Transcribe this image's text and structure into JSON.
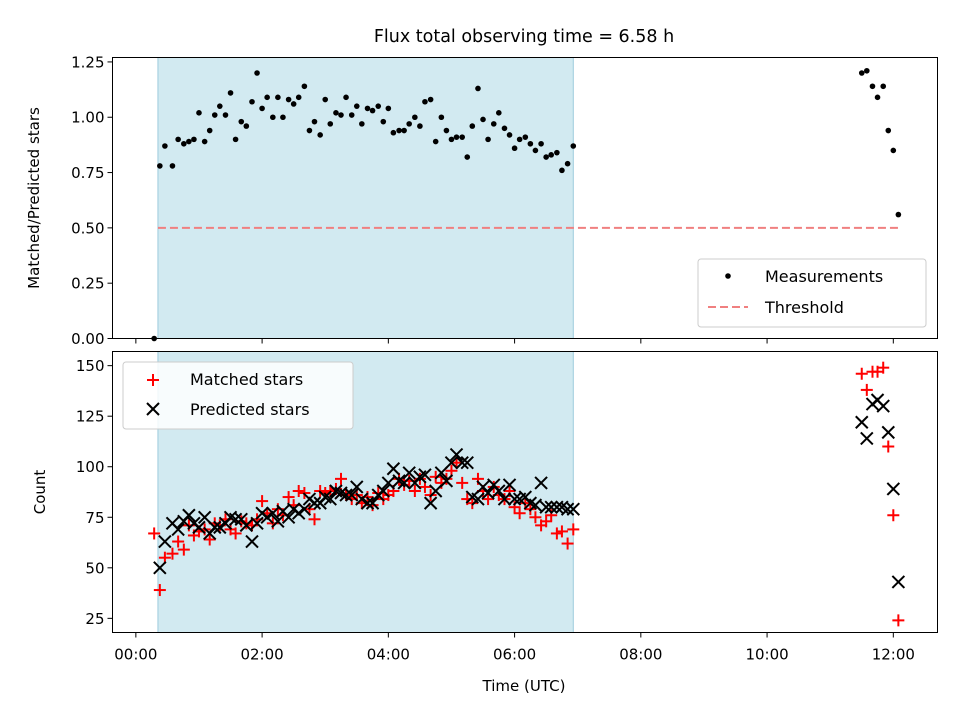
{
  "figure": {
    "title": "Flux total observing time = 6.58 h"
  },
  "chart_data": [
    {
      "type": "scatter",
      "panel": "top",
      "xlabel": "",
      "ylabel": "Matched/Predicted stars",
      "xlim": [
        -0.37,
        12.7
      ],
      "ylim": [
        0,
        1.27
      ],
      "yticks": [
        0.0,
        0.25,
        0.5,
        0.75,
        1.0,
        1.25
      ],
      "ytick_labels": [
        "0.00",
        "0.25",
        "0.50",
        "0.75",
        "1.00",
        "1.25"
      ],
      "grid": false,
      "legend_location": "lower right",
      "shaded_span": {
        "x": [
          0.35,
          6.93
        ],
        "color": "#add8e6"
      },
      "threshold": {
        "name": "Threshold",
        "y": 0.5,
        "x": [
          0.35,
          12.1
        ],
        "color": "#f08080",
        "style": "dashed"
      },
      "series": [
        {
          "name": "Measurements",
          "marker": "dot",
          "color": "#000000",
          "x": [
            0.29,
            0.38,
            0.46,
            0.58,
            0.67,
            0.76,
            0.84,
            0.92,
            1.0,
            1.09,
            1.17,
            1.25,
            1.33,
            1.42,
            1.5,
            1.58,
            1.67,
            1.75,
            1.84,
            1.92,
            2.0,
            2.08,
            2.17,
            2.25,
            2.33,
            2.42,
            2.5,
            2.58,
            2.67,
            2.75,
            2.83,
            2.92,
            3.0,
            3.08,
            3.17,
            3.25,
            3.33,
            3.42,
            3.5,
            3.58,
            3.67,
            3.75,
            3.84,
            3.92,
            4.0,
            4.08,
            4.17,
            4.25,
            4.33,
            4.42,
            4.5,
            4.58,
            4.67,
            4.75,
            4.84,
            4.92,
            5.0,
            5.08,
            5.17,
            5.25,
            5.33,
            5.42,
            5.5,
            5.58,
            5.67,
            5.75,
            5.84,
            5.92,
            6.0,
            6.08,
            6.17,
            6.25,
            6.33,
            6.42,
            6.5,
            6.58,
            6.67,
            6.75,
            6.84,
            6.93,
            11.5,
            11.58,
            11.67,
            11.75,
            11.84,
            11.92,
            12.0,
            12.08
          ],
          "y": [
            0.0,
            0.78,
            0.87,
            0.78,
            0.9,
            0.88,
            0.89,
            0.9,
            1.02,
            0.89,
            0.94,
            1.01,
            1.05,
            1.01,
            1.11,
            0.9,
            0.98,
            0.96,
            1.07,
            1.2,
            1.04,
            1.09,
            1.0,
            1.09,
            1.0,
            1.08,
            1.06,
            1.09,
            1.14,
            0.94,
            0.98,
            0.92,
            1.08,
            0.97,
            1.02,
            1.01,
            1.09,
            1.01,
            1.05,
            0.97,
            1.04,
            1.03,
            1.05,
            0.98,
            1.04,
            0.93,
            0.94,
            0.94,
            0.97,
            1.0,
            0.96,
            1.07,
            1.08,
            0.89,
            1.0,
            0.94,
            0.9,
            0.91,
            0.91,
            0.82,
            0.96,
            1.13,
            0.99,
            0.9,
            0.97,
            1.02,
            0.95,
            0.92,
            0.86,
            0.9,
            0.91,
            0.88,
            0.85,
            0.88,
            0.82,
            0.83,
            0.84,
            0.76,
            0.79,
            0.87,
            1.2,
            1.21,
            1.14,
            1.09,
            1.14,
            0.94,
            0.85,
            0.56
          ]
        }
      ]
    },
    {
      "type": "scatter",
      "panel": "bottom",
      "xlabel": "Time (UTC)",
      "ylabel": "Count",
      "xlim": [
        -0.37,
        12.7
      ],
      "ylim": [
        18,
        157
      ],
      "xticks": [
        0,
        2,
        4,
        6,
        8,
        10,
        12
      ],
      "xtick_labels": [
        "00:00",
        "02:00",
        "04:00",
        "06:00",
        "08:00",
        "10:00",
        "12:00"
      ],
      "yticks": [
        25,
        50,
        75,
        100,
        125,
        150
      ],
      "ytick_labels": [
        "25",
        "50",
        "75",
        "100",
        "125",
        "150"
      ],
      "grid": false,
      "legend_location": "upper left",
      "shaded_span": {
        "x": [
          0.35,
          6.93
        ],
        "color": "#add8e6"
      },
      "series": [
        {
          "name": "Matched stars",
          "marker": "plus",
          "color": "#ff0000",
          "x": [
            0.29,
            0.38,
            0.46,
            0.58,
            0.67,
            0.76,
            0.84,
            0.92,
            1.0,
            1.09,
            1.17,
            1.25,
            1.33,
            1.42,
            1.5,
            1.58,
            1.67,
            1.75,
            1.84,
            1.92,
            2.0,
            2.08,
            2.17,
            2.25,
            2.33,
            2.42,
            2.5,
            2.58,
            2.67,
            2.75,
            2.83,
            2.92,
            3.0,
            3.08,
            3.17,
            3.25,
            3.33,
            3.42,
            3.5,
            3.58,
            3.67,
            3.75,
            3.84,
            3.92,
            4.0,
            4.08,
            4.17,
            4.25,
            4.33,
            4.42,
            4.5,
            4.58,
            4.67,
            4.75,
            4.84,
            4.92,
            5.0,
            5.08,
            5.17,
            5.25,
            5.33,
            5.42,
            5.5,
            5.58,
            5.67,
            5.75,
            5.84,
            5.92,
            6.0,
            6.08,
            6.17,
            6.25,
            6.33,
            6.42,
            6.5,
            6.58,
            6.67,
            6.75,
            6.84,
            6.93,
            11.5,
            11.58,
            11.67,
            11.75,
            11.84,
            11.92,
            12.0,
            12.08
          ],
          "y": [
            67,
            39,
            55,
            57,
            63,
            59,
            71,
            66,
            68,
            69,
            64,
            72,
            71,
            74,
            69,
            67,
            73,
            72,
            71,
            74,
            83,
            77,
            72,
            79,
            76,
            85,
            81,
            88,
            87,
            79,
            74,
            88,
            87,
            88,
            89,
            94,
            86,
            84,
            86,
            82,
            85,
            81,
            87,
            84,
            86,
            88,
            94,
            91,
            93,
            88,
            94,
            90,
            86,
            95,
            92,
            94,
            98,
            102,
            92,
            84,
            82,
            94,
            88,
            84,
            90,
            86,
            84,
            88,
            80,
            77,
            82,
            79,
            75,
            71,
            73,
            76,
            67,
            68,
            62,
            69,
            146,
            138,
            147,
            147,
            149,
            110,
            76,
            24
          ]
        },
        {
          "name": "Predicted stars",
          "marker": "x",
          "color": "#000000",
          "x": [
            0.38,
            0.46,
            0.58,
            0.67,
            0.76,
            0.84,
            0.92,
            1.0,
            1.09,
            1.17,
            1.25,
            1.33,
            1.42,
            1.5,
            1.58,
            1.67,
            1.75,
            1.84,
            1.92,
            2.0,
            2.08,
            2.17,
            2.25,
            2.33,
            2.42,
            2.5,
            2.58,
            2.67,
            2.75,
            2.83,
            2.92,
            3.0,
            3.08,
            3.17,
            3.25,
            3.33,
            3.42,
            3.5,
            3.58,
            3.67,
            3.75,
            3.84,
            3.92,
            4.0,
            4.08,
            4.17,
            4.25,
            4.33,
            4.42,
            4.5,
            4.58,
            4.67,
            4.75,
            4.84,
            4.92,
            5.0,
            5.08,
            5.17,
            5.25,
            5.33,
            5.42,
            5.5,
            5.58,
            5.67,
            5.75,
            5.84,
            5.92,
            6.0,
            6.08,
            6.17,
            6.25,
            6.33,
            6.42,
            6.5,
            6.58,
            6.67,
            6.75,
            6.84,
            6.93,
            11.5,
            11.58,
            11.67,
            11.75,
            11.84,
            11.92,
            12.0,
            12.08
          ],
          "y": [
            50,
            63,
            72,
            69,
            73,
            76,
            72,
            70,
            75,
            67,
            70,
            70,
            72,
            75,
            74,
            74,
            71,
            63,
            72,
            77,
            75,
            77,
            73,
            78,
            75,
            79,
            77,
            79,
            84,
            82,
            82,
            85,
            84,
            88,
            87,
            86,
            86,
            90,
            84,
            82,
            82,
            86,
            88,
            92,
            99,
            93,
            92,
            97,
            92,
            95,
            96,
            82,
            88,
            97,
            93,
            102,
            106,
            102,
            102,
            85,
            84,
            90,
            87,
            91,
            88,
            84,
            91,
            84,
            84,
            85,
            82,
            81,
            92,
            80,
            80,
            80,
            80,
            79,
            79,
            122,
            114,
            131,
            133,
            130,
            117,
            89,
            43
          ]
        }
      ]
    }
  ]
}
